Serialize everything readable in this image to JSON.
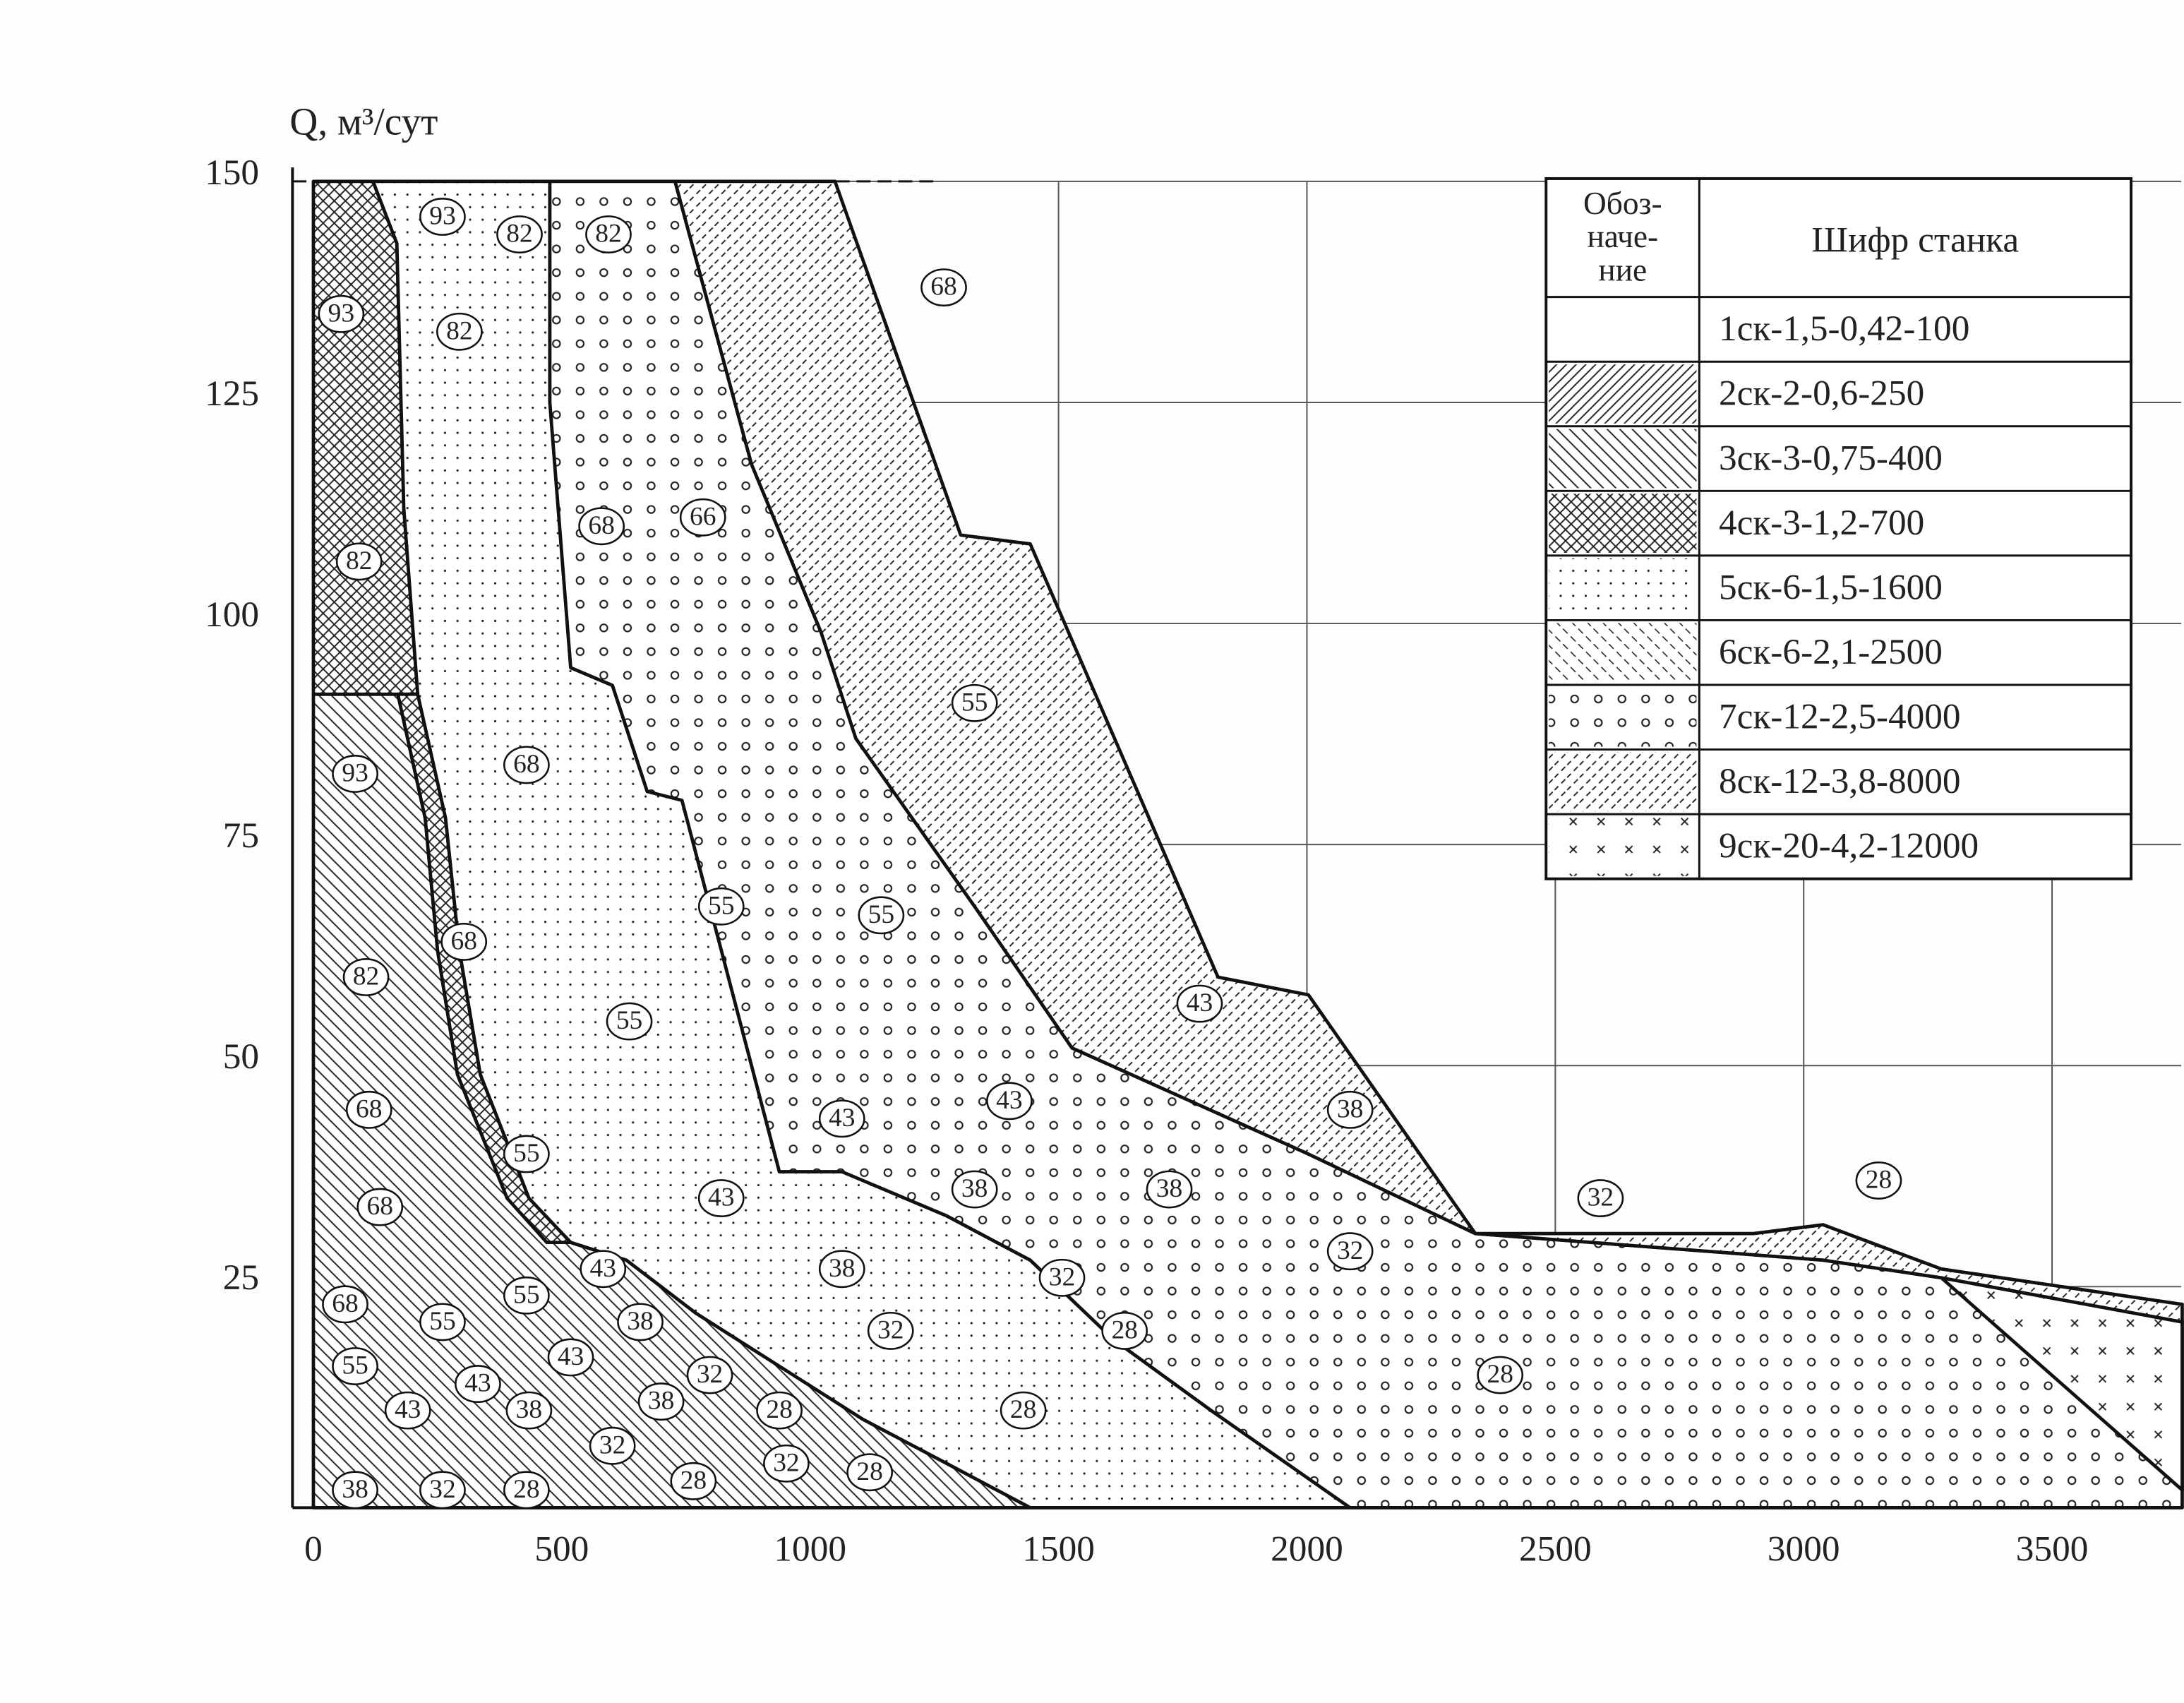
{
  "chart_data": {
    "type": "region",
    "y_label": "Q, м³/сут",
    "xlim": [
      0,
      3760
    ],
    "ylim": [
      0,
      150
    ],
    "xticks": [
      0,
      500,
      1000,
      1500,
      2000,
      2500,
      3000,
      3500
    ],
    "yticks": [
      0,
      25,
      50,
      75,
      100,
      125,
      150
    ],
    "grid": true,
    "legend_header": [
      "Обоз-",
      "наче-",
      "ние"
    ],
    "legend_title": "Шифр станка",
    "series": [
      {
        "name": "1ск-1,5-0,42-100",
        "pattern": "none",
        "color": "#222",
        "regions": []
      },
      {
        "name": "2ск-2-0,6-250",
        "pattern": "hatch-fwd",
        "color": "#222",
        "regions": [
          [
            [
              0,
              40
            ],
            [
              260,
              40
            ],
            [
              300,
              30
            ],
            [
              0,
              30
            ]
          ]
        ]
      },
      {
        "name": "3ск-3-0,75-400",
        "pattern": "hatch-back",
        "color": "#222",
        "regions": [
          [
            [
              0,
              92
            ],
            [
              170,
              92
            ],
            [
              225,
              78
            ],
            [
              250,
              63
            ],
            [
              290,
              49
            ],
            [
              390,
              35
            ],
            [
              470,
              30
            ],
            [
              518,
              30
            ],
            [
              630,
              28
            ],
            [
              770,
              22
            ],
            [
              938,
              16
            ],
            [
              1106,
              10
            ],
            [
              1275,
              5
            ],
            [
              1443,
              0
            ],
            [
              0,
              0
            ]
          ]
        ]
      },
      {
        "name": "4ск-3-1,2-700",
        "pattern": "crosshatch",
        "color": "#222",
        "regions": [
          [
            [
              0,
              150
            ],
            [
              120,
              150
            ],
            [
              168,
              143
            ],
            [
              182,
              113
            ],
            [
              210,
              92
            ],
            [
              0,
              92
            ]
          ],
          [
            [
              210,
              92
            ],
            [
              266,
              78
            ],
            [
              294,
              63
            ],
            [
              336,
              49
            ],
            [
              434,
              35
            ],
            [
              518,
              30
            ],
            [
              470,
              30
            ],
            [
              390,
              35
            ],
            [
              290,
              49
            ],
            [
              250,
              63
            ],
            [
              225,
              78
            ],
            [
              170,
              92
            ]
          ]
        ]
      },
      {
        "name": "5ск-6-1,5-1600",
        "pattern": "dots",
        "color": "#222",
        "regions": [
          [
            [
              120,
              150
            ],
            [
              476,
              150
            ],
            [
              476,
              125
            ],
            [
              518,
              95
            ],
            [
              602,
              93
            ],
            [
              672,
              81
            ],
            [
              742,
              80
            ],
            [
              938,
              38
            ],
            [
              1064,
              38
            ],
            [
              1275,
              33
            ],
            [
              1443,
              28
            ],
            [
              1611,
              19
            ],
            [
              1807,
              11
            ],
            [
              2087,
              0
            ],
            [
              1443,
              0
            ],
            [
              1275,
              5
            ],
            [
              1106,
              10
            ],
            [
              938,
              16
            ],
            [
              770,
              22
            ],
            [
              630,
              28
            ],
            [
              518,
              30
            ],
            [
              434,
              35
            ],
            [
              336,
              49
            ],
            [
              294,
              63
            ],
            [
              266,
              78
            ],
            [
              210,
              92
            ],
            [
              182,
              113
            ],
            [
              168,
              143
            ]
          ]
        ]
      },
      {
        "name": "6ск-6-2,1-2500",
        "pattern": "dash-back",
        "color": "#222",
        "regions": [
          [
            [
              1000,
              150
            ],
            [
              1050,
              150
            ],
            [
              1180,
              125
            ],
            [
              1130,
              125
            ]
          ]
        ]
      },
      {
        "name": "7ск-12-2,5-4000",
        "pattern": "circles",
        "color": "#222",
        "regions": [
          [
            [
              476,
              150
            ],
            [
              728,
              150
            ],
            [
              882,
              118
            ],
            [
              1022,
              99
            ],
            [
              1092,
              87
            ],
            [
              1331,
              68
            ],
            [
              1527,
              52
            ],
            [
              2003,
              40
            ],
            [
              2339,
              31
            ],
            [
              3039,
              28
            ],
            [
              3277,
              26
            ],
            [
              3762,
              21
            ],
            [
              3762,
              0
            ],
            [
              2087,
              0
            ],
            [
              1807,
              11
            ],
            [
              1611,
              19
            ],
            [
              1443,
              28
            ],
            [
              1275,
              33
            ],
            [
              1064,
              38
            ],
            [
              938,
              38
            ],
            [
              742,
              80
            ],
            [
              672,
              81
            ],
            [
              602,
              93
            ],
            [
              518,
              95
            ],
            [
              476,
              125
            ]
          ]
        ]
      },
      {
        "name": "8ск-12-3,8-8000",
        "pattern": "dash-fwd",
        "color": "#222",
        "regions": [
          [
            [
              728,
              150
            ],
            [
              1050,
              150
            ],
            [
              1303,
              110
            ],
            [
              1443,
              109
            ],
            [
              1821,
              60
            ],
            [
              2003,
              58
            ],
            [
              2339,
              31
            ],
            [
              2899,
              31
            ],
            [
              3039,
              32
            ],
            [
              3277,
              27
            ],
            [
              3762,
              23
            ],
            [
              3762,
              21
            ],
            [
              3277,
              26
            ],
            [
              3039,
              28
            ],
            [
              2339,
              31
            ],
            [
              2003,
              40
            ],
            [
              1527,
              52
            ],
            [
              1331,
              68
            ],
            [
              1092,
              87
            ],
            [
              1022,
              99
            ],
            [
              882,
              118
            ]
          ]
        ]
      },
      {
        "name": "9ск-20-4,2-12000",
        "pattern": "crosses",
        "color": "#222",
        "regions": [
          [
            [
              3277,
              26
            ],
            [
              3762,
              21
            ],
            [
              3762,
              2
            ]
          ]
        ]
      }
    ],
    "zone_labels": [
      {
        "text": "93",
        "x": 260,
        "y": 146
      },
      {
        "text": "82",
        "x": 415,
        "y": 144
      },
      {
        "text": "82",
        "x": 594,
        "y": 144
      },
      {
        "text": "68",
        "x": 1269,
        "y": 138
      },
      {
        "text": "93",
        "x": 56,
        "y": 135
      },
      {
        "text": "82",
        "x": 294,
        "y": 133
      },
      {
        "text": "68",
        "x": 580,
        "y": 111
      },
      {
        "text": "66",
        "x": 784,
        "y": 112
      },
      {
        "text": "82",
        "x": 92,
        "y": 107
      },
      {
        "text": "55",
        "x": 1331,
        "y": 91
      },
      {
        "text": "93",
        "x": 84,
        "y": 83
      },
      {
        "text": "68",
        "x": 429,
        "y": 84
      },
      {
        "text": "55",
        "x": 821,
        "y": 68
      },
      {
        "text": "55",
        "x": 1143,
        "y": 67
      },
      {
        "text": "68",
        "x": 303,
        "y": 64
      },
      {
        "text": "82",
        "x": 106,
        "y": 60
      },
      {
        "text": "55",
        "x": 636,
        "y": 55
      },
      {
        "text": "43",
        "x": 1784,
        "y": 57
      },
      {
        "text": "68",
        "x": 112,
        "y": 45
      },
      {
        "text": "55",
        "x": 429,
        "y": 40
      },
      {
        "text": "43",
        "x": 1064,
        "y": 44
      },
      {
        "text": "43",
        "x": 1401,
        "y": 46
      },
      {
        "text": "38",
        "x": 2087,
        "y": 45
      },
      {
        "text": "68",
        "x": 134,
        "y": 34
      },
      {
        "text": "43",
        "x": 821,
        "y": 35
      },
      {
        "text": "38",
        "x": 1331,
        "y": 36
      },
      {
        "text": "38",
        "x": 1723,
        "y": 36
      },
      {
        "text": "32",
        "x": 2591,
        "y": 35
      },
      {
        "text": "28",
        "x": 3151,
        "y": 37
      },
      {
        "text": "43",
        "x": 583,
        "y": 27
      },
      {
        "text": "32",
        "x": 2087,
        "y": 29
      },
      {
        "text": "68",
        "x": 64,
        "y": 23
      },
      {
        "text": "55",
        "x": 260,
        "y": 21
      },
      {
        "text": "55",
        "x": 429,
        "y": 24
      },
      {
        "text": "38",
        "x": 1064,
        "y": 27
      },
      {
        "text": "38",
        "x": 658,
        "y": 21
      },
      {
        "text": "32",
        "x": 1507,
        "y": 26
      },
      {
        "text": "43",
        "x": 518,
        "y": 17
      },
      {
        "text": "55",
        "x": 84,
        "y": 16
      },
      {
        "text": "28",
        "x": 1633,
        "y": 20
      },
      {
        "text": "32",
        "x": 1162,
        "y": 20
      },
      {
        "text": "32",
        "x": 798,
        "y": 15
      },
      {
        "text": "28",
        "x": 2389,
        "y": 15
      },
      {
        "text": "43",
        "x": 331,
        "y": 14
      },
      {
        "text": "43",
        "x": 190,
        "y": 11
      },
      {
        "text": "38",
        "x": 434,
        "y": 11
      },
      {
        "text": "38",
        "x": 700,
        "y": 12
      },
      {
        "text": "28",
        "x": 938,
        "y": 11
      },
      {
        "text": "28",
        "x": 1429,
        "y": 11
      },
      {
        "text": "32",
        "x": 602,
        "y": 7
      },
      {
        "text": "32",
        "x": 952,
        "y": 5
      },
      {
        "text": "28",
        "x": 765,
        "y": 3
      },
      {
        "text": "28",
        "x": 1120,
        "y": 4
      },
      {
        "text": "38",
        "x": 84,
        "y": 2
      },
      {
        "text": "32",
        "x": 260,
        "y": 2
      },
      {
        "text": "28",
        "x": 429,
        "y": 2
      }
    ]
  }
}
